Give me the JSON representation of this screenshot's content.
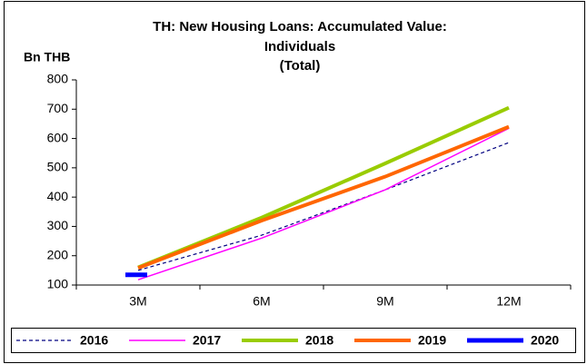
{
  "chart_data": {
    "type": "line",
    "title": [
      "TH: New Housing Loans: Accumulated Value:",
      "Individuals",
      "(Total)"
    ],
    "y_label": "Bn THB",
    "categories": [
      "3M",
      "6M",
      "9M",
      "12M"
    ],
    "ylim": [
      100,
      800
    ],
    "yticks": [
      100,
      200,
      300,
      400,
      500,
      600,
      700,
      800
    ],
    "legend": "bottom",
    "series": [
      {
        "name": "2016",
        "color": "#000080",
        "dash": true,
        "width": 1.2,
        "values": [
          150,
          270,
          425,
          586
        ]
      },
      {
        "name": "2017",
        "color": "#ff00ff",
        "dash": false,
        "width": 1.5,
        "values": [
          118,
          260,
          425,
          635
        ]
      },
      {
        "name": "2018",
        "color": "#99cc00",
        "dash": false,
        "width": 4,
        "values": [
          160,
          330,
          515,
          705
        ]
      },
      {
        "name": "2019",
        "color": "#ff6600",
        "dash": false,
        "width": 4,
        "values": [
          158,
          320,
          470,
          640
        ]
      },
      {
        "name": "2020",
        "color": "#0000ff",
        "dash": false,
        "width": 5,
        "values": [
          135,
          null,
          null,
          null
        ]
      }
    ]
  }
}
